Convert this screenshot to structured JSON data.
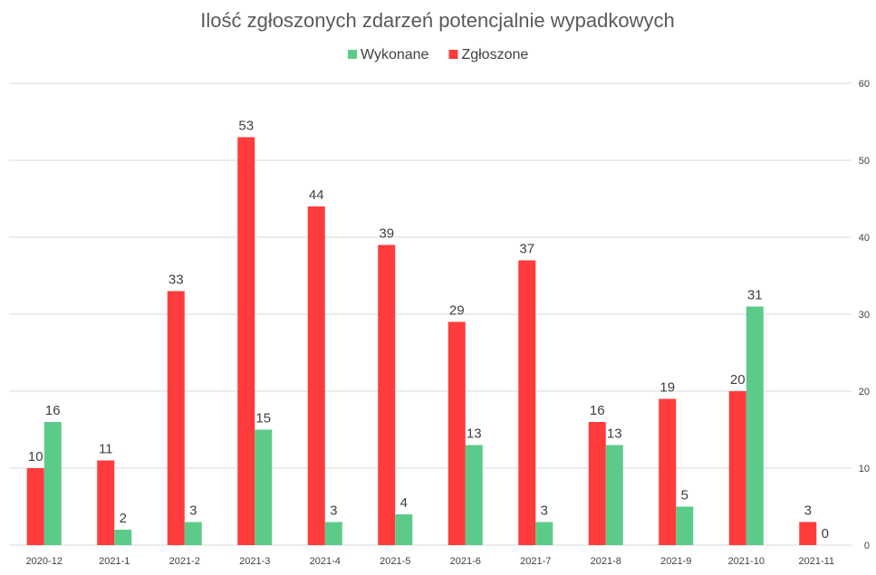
{
  "chart_data": {
    "type": "bar",
    "title": "Ilość zgłoszonych zdarzeń potencjalnie wypadkowych",
    "categories": [
      "2020-12",
      "2021-1",
      "2021-2",
      "2021-3",
      "2021-4",
      "2021-5",
      "2021-6",
      "2021-7",
      "2021-8",
      "2021-9",
      "2021-10",
      "2021-11"
    ],
    "series": [
      {
        "name": "Zgłoszone",
        "color": "#ff3b3b",
        "values": [
          10,
          11,
          33,
          53,
          44,
          39,
          29,
          37,
          16,
          19,
          20,
          3
        ]
      },
      {
        "name": "Wykonane",
        "color": "#5ccb8a",
        "values": [
          16,
          2,
          3,
          15,
          3,
          4,
          13,
          3,
          13,
          5,
          31,
          0
        ]
      }
    ],
    "legend_order": [
      "Wykonane",
      "Zgłoszone"
    ],
    "legend_position": "top",
    "ylim": [
      0,
      60
    ],
    "yticks": [
      0,
      10,
      20,
      30,
      40,
      50,
      60
    ],
    "y_axis_side": "right",
    "grid": true,
    "xlabel": "",
    "ylabel": ""
  }
}
